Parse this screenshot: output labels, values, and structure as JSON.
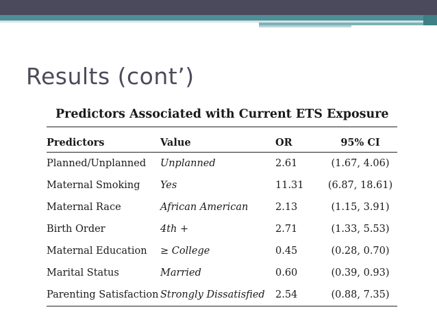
{
  "title": "Results (cont’)",
  "table": {
    "caption": "Predictors Associated with Current ETS Exposure",
    "headers": [
      "Predictors",
      "Value",
      "OR",
      "95% CI"
    ],
    "rows": [
      {
        "predictor": "Planned/Unplanned",
        "value": "Unplanned",
        "or": "2.61",
        "ci": "(1.67, 4.06)"
      },
      {
        "predictor": "Maternal Smoking",
        "value": "Yes",
        "or": "11.31",
        "ci": "(6.87, 18.61)"
      },
      {
        "predictor": "Maternal Race",
        "value": "African American",
        "or": "2.13",
        "ci": "(1.15, 3.91)"
      },
      {
        "predictor": "Birth Order",
        "value": "4th +",
        "or": "2.71",
        "ci": "(1.33, 5.53)"
      },
      {
        "predictor": "Maternal Education",
        "value": "≥ College",
        "or": "0.45",
        "ci": "(0.28, 0.70)"
      },
      {
        "predictor": "Marital Status",
        "value": "Married",
        "or": "0.60",
        "ci": "(0.39, 0.93)"
      },
      {
        "predictor": "Parenting Satisfaction",
        "value": "Strongly Dissatisfied",
        "or": "2.54",
        "ci": "(0.88, 7.35)"
      }
    ]
  },
  "colors": {
    "title": "#4b4b5a",
    "band_dark": "#4a4a5c",
    "band_teal": "#4e8f96"
  }
}
